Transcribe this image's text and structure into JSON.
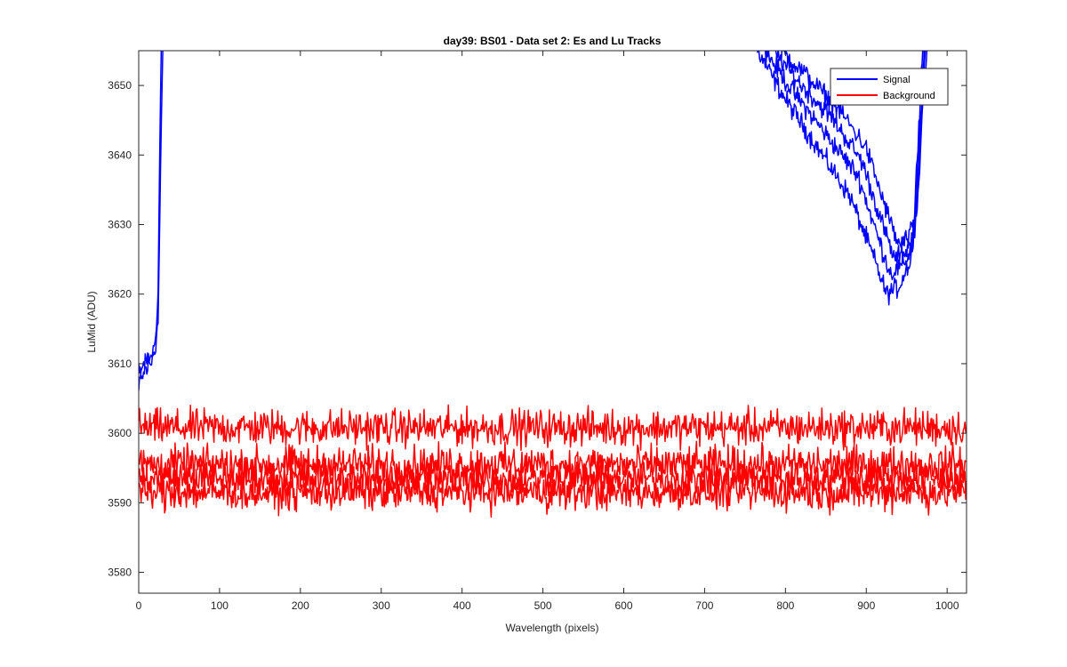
{
  "chart_data": {
    "type": "line",
    "title": "day39: BS01 - Data set 2: Es and Lu Tracks",
    "xlabel": "Wavelength (pixels)",
    "ylabel": "LuMid (ADU)",
    "xlim": [
      0,
      1024
    ],
    "ylim": [
      3577,
      3655
    ],
    "xticks": [
      0,
      100,
      200,
      300,
      400,
      500,
      600,
      700,
      800,
      900,
      1000
    ],
    "yticks": [
      3580,
      3590,
      3600,
      3610,
      3620,
      3630,
      3640,
      3650
    ],
    "grid": false,
    "legend": {
      "position": "top-right",
      "entries": [
        "Signal",
        "Background"
      ]
    },
    "colors": {
      "Signal": "#0000ff",
      "Background": "#ff0000"
    },
    "series": [
      {
        "name": "Signal",
        "tracks": [
          {
            "x": [
              0,
              5,
              10,
              15,
              20,
              24,
              26,
              28,
              30
            ],
            "y": [
              3606,
              3610,
              3609,
              3611,
              3612,
              3616,
              3630,
              3645,
              3656
            ]
          },
          {
            "x": [
              0,
              5,
              10,
              15,
              20,
              24,
              26,
              28
            ],
            "y": [
              3609,
              3608,
              3611,
              3610,
              3613,
              3620,
              3640,
              3656
            ]
          },
          {
            "x": [
              765,
              800,
              840,
              880,
              910,
              925,
              940,
              955,
              960,
              965,
              970
            ],
            "y": [
              3655,
              3648,
              3641,
              3634,
              3625,
              3620,
              3621,
              3625,
              3632,
              3645,
              3656
            ]
          },
          {
            "x": [
              775,
              810,
              850,
              890,
              915,
              930,
              945,
              958,
              962,
              967,
              972
            ],
            "y": [
              3655,
              3649,
              3643,
              3637,
              3628,
              3623,
              3624,
              3627,
              3634,
              3647,
              3656
            ]
          },
          {
            "x": [
              785,
              820,
              860,
              895,
              920,
              935,
              948,
              960,
              964,
              969,
              974
            ],
            "y": [
              3655,
              3650,
              3645,
              3639,
              3630,
              3625,
              3626,
              3629,
              3636,
              3649,
              3656
            ]
          },
          {
            "x": [
              795,
              830,
              870,
              900,
              925,
              940,
              952,
              962,
              966,
              971,
              976
            ],
            "y": [
              3655,
              3651,
              3646,
              3641,
              3632,
              3627,
              3628,
              3631,
              3638,
              3650,
              3656
            ]
          }
        ]
      },
      {
        "name": "Background",
        "tracks": [
          {
            "x": [
              0,
              1024
            ],
            "y": [
              3600.8,
              3600.8
            ],
            "noise": 1.6
          },
          {
            "x": [
              0,
              1024
            ],
            "y": [
              3595.5,
              3595.5
            ],
            "noise": 1.6
          },
          {
            "x": [
              0,
              1024
            ],
            "y": [
              3593.5,
              3593.5
            ],
            "noise": 1.6
          },
          {
            "x": [
              0,
              1024
            ],
            "y": [
              3591.5,
              3591.5
            ],
            "noise": 1.6
          }
        ]
      }
    ]
  }
}
